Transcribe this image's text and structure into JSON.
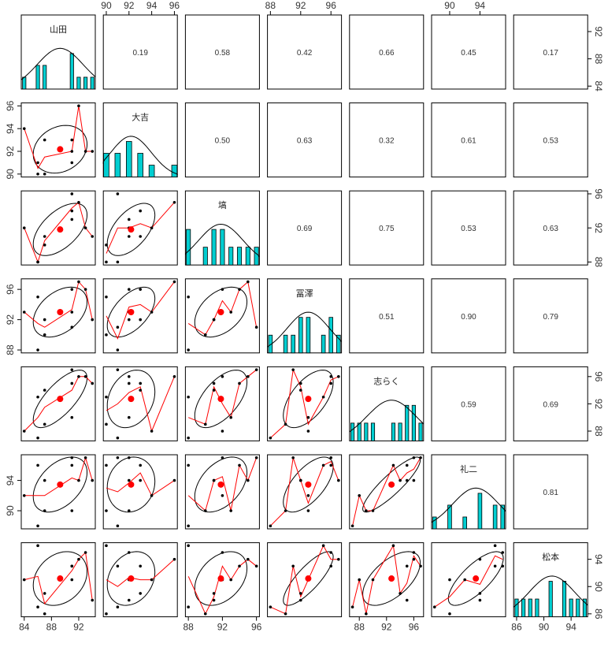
{
  "chart_data": {
    "type": "pairs",
    "variables": [
      "山田",
      "大吉",
      "塙",
      "冨澤",
      "志らく",
      "礼二",
      "松本"
    ],
    "observations": [
      {
        "山田": 84,
        "大吉": 94,
        "塙": 92,
        "冨澤": 93,
        "志らく": 88,
        "礼二": 92,
        "松本": 91
      },
      {
        "山田": 86,
        "大吉": 91,
        "塙": 88,
        "冨澤": 88,
        "志らく": 87,
        "礼二": 88,
        "松本": 87
      },
      {
        "山田": 86,
        "大吉": 90,
        "塙": 88,
        "冨澤": 95,
        "志らく": 93,
        "礼二": 96,
        "松本": 96
      },
      {
        "山田": 87,
        "大吉": 90,
        "塙": 90,
        "冨澤": 90,
        "志らく": 89,
        "礼二": 90,
        "松本": 86
      },
      {
        "山田": 87,
        "大吉": 93,
        "塙": 91,
        "冨澤": 92,
        "志らく": 94,
        "礼二": 94,
        "松本": 89
      },
      {
        "山田": 91,
        "大吉": 91,
        "塙": 96,
        "冨澤": 91,
        "志らく": 97,
        "礼二": 97,
        "松本": 93
      },
      {
        "山田": 91,
        "大吉": 93,
        "塙": 94,
        "冨澤": 96,
        "志らく": 95,
        "礼二": 96,
        "松本": 93
      },
      {
        "山田": 91,
        "大吉": 92,
        "塙": 93,
        "冨澤": 93,
        "志らく": 90,
        "礼二": 90,
        "松本": 91
      },
      {
        "山田": 92,
        "大吉": 96,
        "塙": 95,
        "冨澤": 97,
        "志らく": 96,
        "礼二": 94,
        "松本": 94
      },
      {
        "山田": 93,
        "大吉": 92,
        "塙": 92,
        "冨澤": 96,
        "志らく": 96,
        "礼二": 97,
        "松本": 95
      },
      {
        "山田": 94,
        "大吉": 92,
        "塙": 91,
        "冨澤": 92,
        "志らく": 95,
        "礼二": 94,
        "松本": 88
      }
    ],
    "correlations": [
      [
        "",
        "0.19",
        "0.58",
        "0.42",
        "0.66",
        "0.45",
        "0.17"
      ],
      [
        "",
        "",
        "0.50",
        "0.63",
        "0.32",
        "0.61",
        "0.53"
      ],
      [
        "",
        "",
        "",
        "0.69",
        "0.75",
        "0.53",
        "0.63"
      ],
      [
        "",
        "",
        "",
        "",
        "0.51",
        "0.90",
        "0.79"
      ],
      [
        "",
        "",
        "",
        "",
        "",
        "0.59",
        "0.69"
      ],
      [
        "",
        "",
        "",
        "",
        "",
        "",
        "0.81"
      ],
      [
        "",
        "",
        "",
        "",
        "",
        "",
        ""
      ]
    ],
    "ranges": [
      [
        84,
        94
      ],
      [
        90,
        96
      ],
      [
        88,
        96
      ],
      [
        88,
        97
      ],
      [
        87,
        97
      ],
      [
        88,
        97
      ],
      [
        86,
        96
      ]
    ],
    "ticks": [
      [
        84,
        88,
        92
      ],
      [
        90,
        92,
        94,
        96
      ],
      [
        88,
        92,
        96
      ],
      [
        88,
        92,
        96
      ],
      [
        88,
        92,
        96
      ],
      [
        90,
        94
      ],
      [
        86,
        90,
        94
      ]
    ],
    "top_axis_ticks": {
      "1": [
        90,
        92,
        94,
        96
      ],
      "3": [
        88,
        92,
        96
      ],
      "5": [
        90,
        94
      ]
    },
    "bottom_axis_ticks": {
      "0": [
        84,
        88,
        92
      ],
      "2": [
        88,
        92,
        96
      ],
      "4": [
        88,
        92,
        96
      ],
      "6": [
        86,
        90,
        94
      ]
    },
    "right_axis_ticks": {
      "0": [
        84,
        88,
        92
      ],
      "2": [
        88,
        92,
        96
      ],
      "4": [
        88,
        92,
        96
      ],
      "6": [
        86,
        90,
        94
      ]
    },
    "left_axis_ticks": {
      "1": [
        90,
        92,
        94,
        96
      ],
      "3": [
        88,
        92,
        96
      ],
      "5": [
        90,
        94
      ]
    },
    "colors": {
      "histogram_fill": "#00CED1",
      "points": "#000000",
      "mean_point": "#FF0000",
      "smoother": "#FF0000",
      "ellipse": "#000000",
      "density": "#000000",
      "panel_border": "#000000"
    },
    "lower_panels": "scatter with correlation ellipse, loess smoother and mean point",
    "upper_panels": "correlation coefficient",
    "diagonal_panels": "histogram with density curve"
  }
}
